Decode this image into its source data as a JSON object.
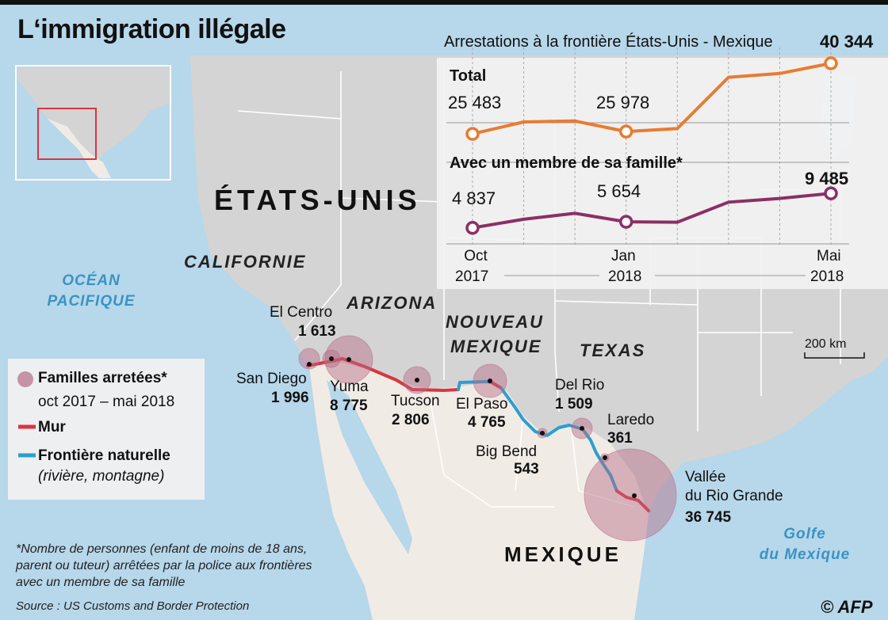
{
  "title": "L‘immigration illégale",
  "chart": {
    "title": "Arrestations à la frontière États-Unis - Mexique",
    "total_label": "Total",
    "family_label": "Avec un membre de sa famille*",
    "labels": {
      "total_first": "25 483",
      "total_mid": "25 978",
      "total_last": "40 344",
      "family_first": "4 837",
      "family_mid": "5 654",
      "family_last": "9 485"
    },
    "x_ticks": [
      {
        "line1": "Oct",
        "line2": "2017"
      },
      {
        "line1": "Jan",
        "line2": "2018"
      },
      {
        "line1": "Mai",
        "line2": "2018"
      }
    ]
  },
  "chart_data": {
    "type": "line",
    "title": "Arrestations à la frontière États-Unis - Mexique",
    "categories": [
      "Oct 2017",
      "Nov 2017",
      "Déc 2017",
      "Jan 2018",
      "Fév 2018",
      "Mar 2018",
      "Avr 2018",
      "Mai 2018"
    ],
    "series": [
      {
        "name": "Total",
        "values": [
          25483,
          28000,
          28200,
          25978,
          26600,
          37400,
          38200,
          40344
        ],
        "color": "#e87b32"
      },
      {
        "name": "Avec un membre de sa famille*",
        "values": [
          4837,
          6000,
          6800,
          5654,
          5600,
          8300,
          8800,
          9485
        ],
        "color": "#8b2f66"
      }
    ],
    "grid": true
  },
  "regions": {
    "usa": "ÉTATS-UNIS",
    "california": "CALIFORNIE",
    "arizona": "ARIZONA",
    "newmexico_1": "NOUVEAU",
    "newmexico_2": "MEXIQUE",
    "texas": "TEXAS",
    "mexico": "MEXIQUE",
    "pacific_1": "OCÉAN",
    "pacific_2": "PACIFIQUE",
    "gulf_1": "Golfe",
    "gulf_2": "du Mexique"
  },
  "cities": {
    "elcentro_name": "El Centro",
    "elcentro_num": "1 613",
    "sandiego_name": "San Diego",
    "sandiego_num": "1 996",
    "yuma_name": "Yuma",
    "yuma_num": "8 775",
    "tucson_name": "Tucson",
    "tucson_num": "2 806",
    "elpaso_name": "El Paso",
    "elpaso_num": "4 765",
    "delrio_name": "Del Rio",
    "delrio_num": "1 509",
    "bigbend_name": "Big Bend",
    "bigbend_num": "543",
    "laredo_name": "Laredo",
    "laredo_num": "361",
    "rgv_name1": "Vallée",
    "rgv_name2": "du Rio Grande",
    "rgv_num": "36 745"
  },
  "legend": {
    "families_label": "Familles arretées*",
    "families_period": "oct 2017 – mai 2018",
    "wall_label": "Mur",
    "natural_label": "Frontière naturelle",
    "natural_sub": "(rivière, montagne)"
  },
  "scale_label": "200 km",
  "note_lines": [
    "*Nombre de personnes (enfant de moins de 18 ans,",
    "parent ou tuteur) arrêtées par la police aux frontières",
    "avec un membre de sa famille"
  ],
  "source": "Source : US Customs and Border Protection",
  "credit": "© AFP",
  "colors": {
    "total": "#e87b32",
    "family": "#8b2f66",
    "wall": "#d9363e",
    "natural": "#2b9fcf",
    "circle": "#b56b85",
    "sea": "#b7d7ea",
    "usa_land": "#d4d4d4",
    "mexico_land": "#f1ebe6"
  }
}
